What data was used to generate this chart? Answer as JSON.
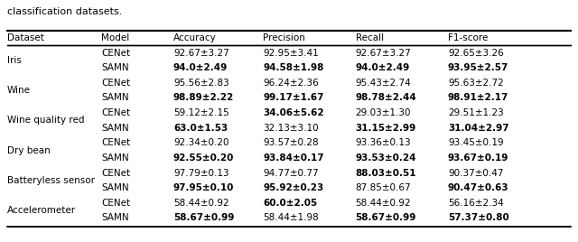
{
  "caption": "classification datasets.",
  "columns": [
    "Dataset",
    "Model",
    "Accuracy",
    "Precision",
    "Recall",
    "F1-score"
  ],
  "rows": [
    {
      "dataset": "Iris",
      "model": "CENet",
      "accuracy": "92.67±3.27",
      "precision": "92.95±3.41",
      "recall": "92.67±3.27",
      "f1": "92.65±3.26",
      "bold": []
    },
    {
      "dataset": "Iris",
      "model": "SAMN",
      "accuracy": "94.0±2.49",
      "precision": "94.58±1.98",
      "recall": "94.0±2.49",
      "f1": "93.95±2.57",
      "bold": [
        "accuracy",
        "precision",
        "recall",
        "f1"
      ]
    },
    {
      "dataset": "Wine",
      "model": "CENet",
      "accuracy": "95.56±2.83",
      "precision": "96.24±2.36",
      "recall": "95.43±2.74",
      "f1": "95.63±2.72",
      "bold": []
    },
    {
      "dataset": "Wine",
      "model": "SAMN",
      "accuracy": "98.89±2.22",
      "precision": "99.17±1.67",
      "recall": "98.78±2.44",
      "f1": "98.91±2.17",
      "bold": [
        "accuracy",
        "precision",
        "recall",
        "f1"
      ]
    },
    {
      "dataset": "Wine quality red",
      "model": "CENet",
      "accuracy": "59.12±2.15",
      "precision": "34.06±5.62",
      "recall": "29.03±1.30",
      "f1": "29.51±1.23",
      "bold": [
        "precision"
      ]
    },
    {
      "dataset": "Wine quality red",
      "model": "SAMN",
      "accuracy": "63.0±1.53",
      "precision": "32.13±3.10",
      "recall": "31.15±2.99",
      "f1": "31.04±2.97",
      "bold": [
        "accuracy",
        "recall",
        "f1"
      ]
    },
    {
      "dataset": "Dry bean",
      "model": "CENet",
      "accuracy": "92.34±0.20",
      "precision": "93.57±0.28",
      "recall": "93.36±0.13",
      "f1": "93.45±0.19",
      "bold": []
    },
    {
      "dataset": "Dry bean",
      "model": "SAMN",
      "accuracy": "92.55±0.20",
      "precision": "93.84±0.17",
      "recall": "93.53±0.24",
      "f1": "93.67±0.19",
      "bold": [
        "accuracy",
        "precision",
        "recall",
        "f1"
      ]
    },
    {
      "dataset": "Batteryless sensor",
      "model": "CENet",
      "accuracy": "97.79±0.13",
      "precision": "94.77±0.77",
      "recall": "88.03±0.51",
      "f1": "90.37±0.47",
      "bold": [
        "recall"
      ]
    },
    {
      "dataset": "Batteryless sensor",
      "model": "SAMN",
      "accuracy": "97.95±0.10",
      "precision": "95.92±0.23",
      "recall": "87.85±0.67",
      "f1": "90.47±0.63",
      "bold": [
        "accuracy",
        "precision",
        "f1"
      ]
    },
    {
      "dataset": "Accelerometer",
      "model": "CENet",
      "accuracy": "58.44±0.92",
      "precision": "60.0±2.05",
      "recall": "58.44±0.92",
      "f1": "56.16±2.34",
      "bold": [
        "precision"
      ]
    },
    {
      "dataset": "Accelerometer",
      "model": "SAMN",
      "accuracy": "58.67±0.99",
      "precision": "58.44±1.98",
      "recall": "58.67±0.99",
      "f1": "57.37±0.80",
      "bold": [
        "accuracy",
        "recall",
        "f1"
      ]
    }
  ],
  "font_size": 7.5,
  "caption_font_size": 8.0
}
